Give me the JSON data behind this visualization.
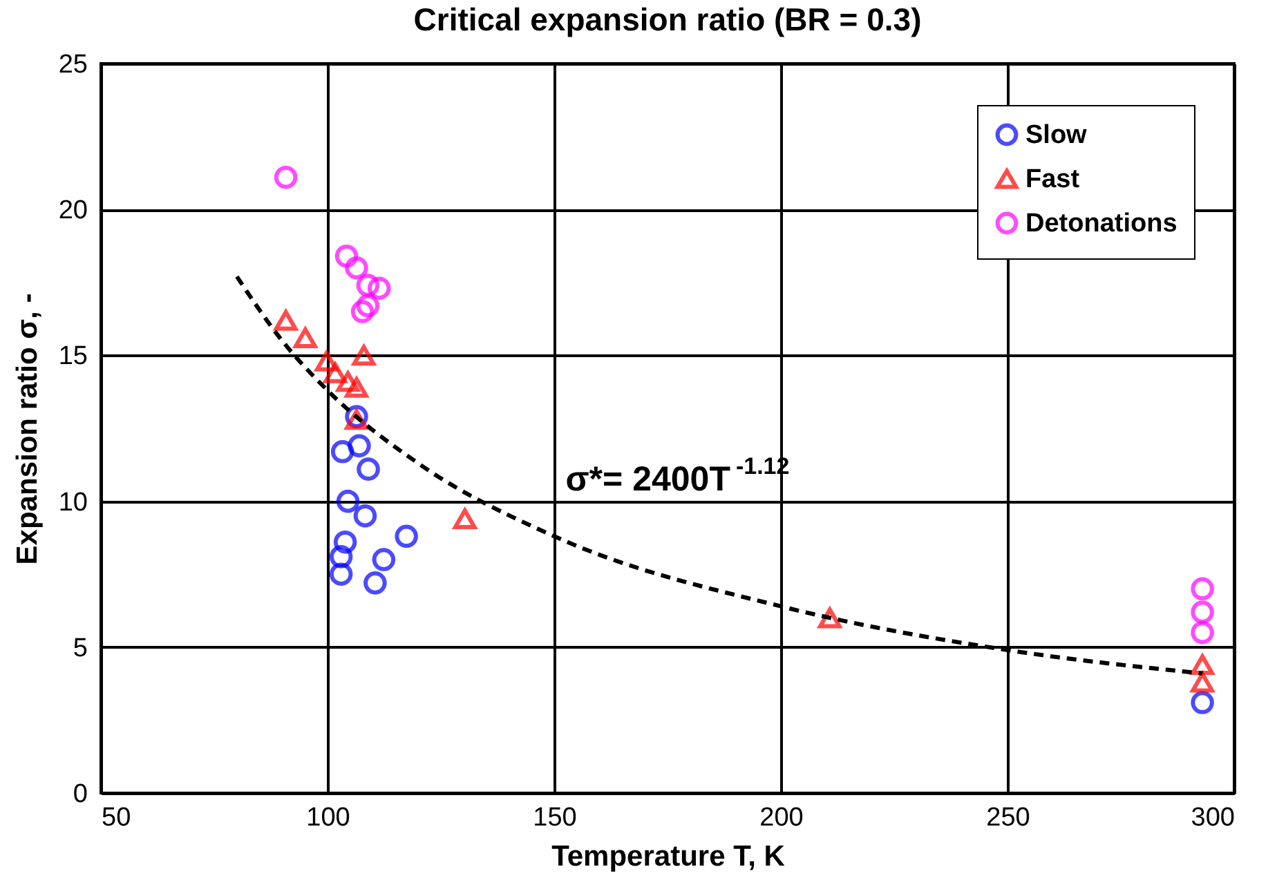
{
  "chart_data": {
    "type": "scatter",
    "title": "Critical expansion ratio (BR = 0.3)",
    "xlabel": "Temperature T, K",
    "ylabel": "Expansion ratio σ, -",
    "xlim": [
      50,
      300
    ],
    "xticks": [
      50,
      100,
      150,
      200,
      250,
      300
    ],
    "ylim": [
      0,
      25
    ],
    "yticks": [
      0,
      5,
      10,
      15,
      20,
      25
    ],
    "grid": true,
    "legend": "top right",
    "annotations": [
      "σ*= 2400T$^{-1.12}$"
    ],
    "series": [
      {
        "name": "Slow",
        "color": "#0000ff",
        "marker": "circle",
        "x": [
          106.4,
          103.3,
          107,
          109,
          104.5,
          108.3,
          103.9,
          103,
          103,
          112.4,
          117.4,
          110.5,
          293
        ],
        "values": [
          12.9,
          11.7,
          11.9,
          11.1,
          10.0,
          9.5,
          8.6,
          8.1,
          7.5,
          8.0,
          8.8,
          7.2,
          3.1
        ]
      },
      {
        "name": "Fast",
        "color": "#ff0000",
        "marker": "triangle",
        "x": [
          90.8,
          95.1,
          99.8,
          108,
          101.7,
          104.5,
          106.4,
          106.4,
          130.3,
          210.8,
          293,
          293
        ],
        "values": [
          16.2,
          15.6,
          14.8,
          15.0,
          14.4,
          14.1,
          13.9,
          12.8,
          9.4,
          6.0,
          4.4,
          3.8
        ]
      },
      {
        "name": "Detonations",
        "color": "#ff00ff",
        "marker": "circle",
        "x": [
          90.8,
          104.2,
          106.4,
          108.9,
          111.4,
          108.9,
          107.7,
          293,
          293,
          293
        ],
        "values": [
          21.1,
          18.4,
          18.0,
          17.4,
          17.3,
          16.7,
          16.5,
          7.0,
          6.2,
          5.5
        ]
      },
      {
        "type": "line",
        "color": "#000000",
        "line_style": "dashed",
        "x": [
          80,
          90,
          100,
          120,
          150,
          200,
          250,
          293
        ],
        "values": [
          17.7,
          15.5,
          13.8,
          11.3,
          8.8,
          6.4,
          4.9,
          4.1
        ]
      }
    ]
  }
}
